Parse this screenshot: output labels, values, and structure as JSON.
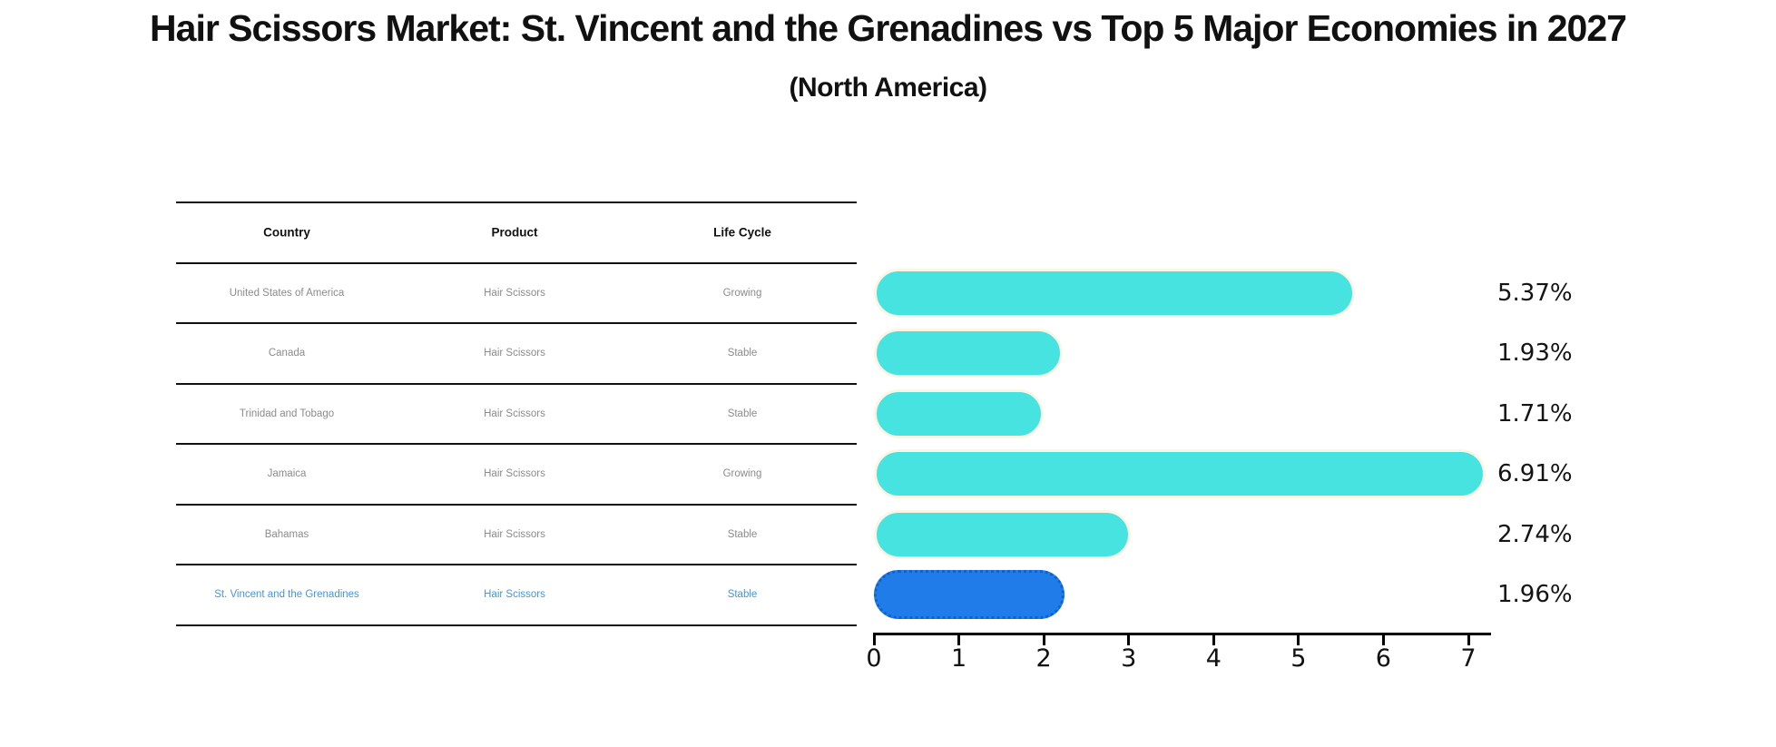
{
  "title": "Hair Scissors Market: St. Vincent and the Grenadines vs Top 5 Major Economies in 2027",
  "subtitle": "(North America)",
  "table": {
    "headers": {
      "country": "Country",
      "product": "Product",
      "life_cycle": "Life Cycle"
    },
    "rows": [
      {
        "country": "United States of America",
        "product": "Hair Scissors",
        "life_cycle": "Growing",
        "label": "5.37%"
      },
      {
        "country": "Canada",
        "product": "Hair Scissors",
        "life_cycle": "Stable",
        "label": "1.93%"
      },
      {
        "country": "Trinidad and Tobago",
        "product": "Hair Scissors",
        "life_cycle": "Stable",
        "label": "1.71%"
      },
      {
        "country": "Jamaica",
        "product": "Hair Scissors",
        "life_cycle": "Growing",
        "label": "6.91%"
      },
      {
        "country": "Bahamas",
        "product": "Hair Scissors",
        "life_cycle": "Stable",
        "label": "2.74%"
      },
      {
        "country": "St. Vincent and the Grenadines",
        "product": "Hair Scissors",
        "life_cycle": "Stable",
        "label": "1.96%"
      }
    ]
  },
  "chart_data": {
    "type": "bar",
    "orientation": "horizontal",
    "title": "Hair Scissors Market: St. Vincent and the Grenadines vs Top 5 Major Economies in 2027",
    "subtitle": "(North America)",
    "categories": [
      "United States of America",
      "Canada",
      "Trinidad and Tobago",
      "Jamaica",
      "Bahamas",
      "St. Vincent and the Grenadines"
    ],
    "values": [
      5.37,
      1.93,
      1.71,
      6.91,
      2.74,
      1.96
    ],
    "value_labels": [
      "5.37%",
      "1.93%",
      "1.71%",
      "6.91%",
      "2.74%",
      "1.96%"
    ],
    "xlim": [
      0,
      7.3
    ],
    "xticks": [
      0,
      1,
      2,
      3,
      4,
      5,
      6,
      7
    ],
    "grid": false,
    "legend": false,
    "bar_color": "#46e3e0",
    "highlight_index": 5,
    "highlight_color": "#1f7ce9",
    "highlight_text_color": "#4795d8"
  },
  "axis": {
    "ticks": [
      "0",
      "1",
      "2",
      "3",
      "4",
      "5",
      "6",
      "7"
    ]
  }
}
